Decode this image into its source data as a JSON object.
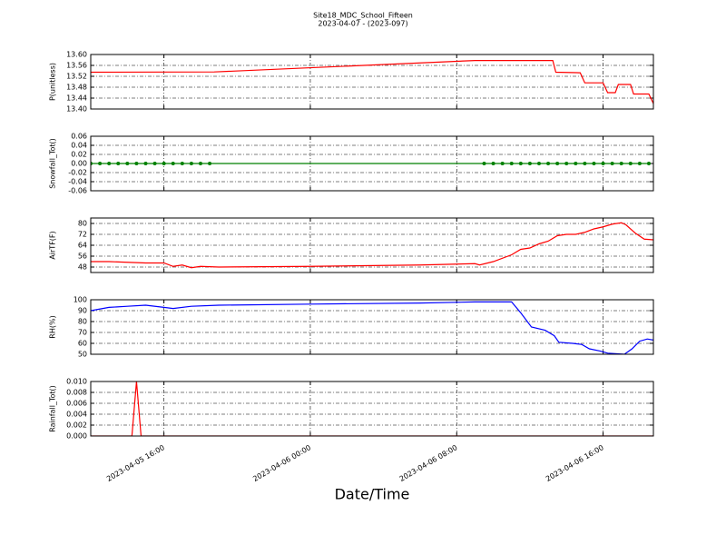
{
  "title": "Site18_MDC_School_Fifteen",
  "subtitle": "2023-04-07 - (2023-097)",
  "chart_data": [
    {
      "type": "line",
      "ylabel": "P(unitless)",
      "xlim": [
        "2023-04-05 12:00",
        "2023-04-06 18:45"
      ],
      "xticks": [
        "2023-04-05 16:00",
        "2023-04-06 00:00",
        "2023-04-06 08:00",
        "2023-04-06 16:00"
      ],
      "ylim": [
        13.4,
        13.6
      ],
      "yticks": [
        {
          "value": 13.4,
          "label": "13.40"
        },
        13.44,
        13.48,
        13.52,
        13.56,
        {
          "value": 13.6,
          "label": "13.60"
        }
      ],
      "grid": true,
      "x": [
        "2023-04-05 12:00",
        "2023-04-05 18:45",
        "2023-04-06 09:00",
        "2023-04-06 13:15",
        "2023-04-06 13:25",
        "2023-04-06 14:45",
        "2023-04-06 15:00",
        "2023-04-06 16:00",
        "2023-04-06 16:15",
        "2023-04-06 16:40",
        "2023-04-06 16:50",
        "2023-04-06 17:30",
        "2023-04-06 17:40",
        "2023-04-06 18:30",
        "2023-04-06 18:45"
      ],
      "series": [
        {
          "color": "#ff0000",
          "values": [
            13.535,
            13.536,
            13.578,
            13.578,
            13.535,
            13.533,
            13.496,
            13.496,
            13.46,
            13.46,
            13.49,
            13.49,
            13.455,
            13.455,
            13.42
          ]
        }
      ]
    },
    {
      "type": "line",
      "ylabel": "Snowfall_Tot()",
      "marker": "o",
      "xlim": [
        "2023-04-05 12:00",
        "2023-04-06 18:45"
      ],
      "xticks": [
        "2023-04-05 16:00",
        "2023-04-06 00:00",
        "2023-04-06 08:00",
        "2023-04-06 16:00"
      ],
      "ylim": [
        -0.06,
        0.06
      ],
      "yticks": [
        -0.06,
        -0.04,
        -0.02,
        {
          "value": 0,
          "label": "0.00"
        },
        0.02,
        0.04,
        0.06
      ],
      "grid": true,
      "x": [
        "2023-04-05 12:00",
        "2023-04-05 12:30",
        "2023-04-05 13:00",
        "2023-04-05 13:30",
        "2023-04-05 14:00",
        "2023-04-05 14:30",
        "2023-04-05 15:00",
        "2023-04-05 15:30",
        "2023-04-05 16:00",
        "2023-04-05 16:30",
        "2023-04-05 17:00",
        "2023-04-05 17:30",
        "2023-04-05 18:00",
        "2023-04-05 18:30",
        "2023-04-06 09:30",
        "2023-04-06 10:00",
        "2023-04-06 10:30",
        "2023-04-06 11:00",
        "2023-04-06 11:30",
        "2023-04-06 12:00",
        "2023-04-06 12:30",
        "2023-04-06 13:00",
        "2023-04-06 13:30",
        "2023-04-06 14:00",
        "2023-04-06 14:30",
        "2023-04-06 15:00",
        "2023-04-06 15:30",
        "2023-04-06 16:00",
        "2023-04-06 16:30",
        "2023-04-06 17:00",
        "2023-04-06 17:30",
        "2023-04-06 18:00",
        "2023-04-06 18:30"
      ],
      "series": [
        {
          "color": "#008000",
          "values": [
            0,
            0,
            0,
            0,
            0,
            0,
            0,
            0,
            0,
            0,
            0,
            0,
            0,
            0,
            0,
            0,
            0,
            0,
            0,
            0,
            0,
            0,
            0,
            0,
            0,
            0,
            0,
            0,
            0,
            0,
            0,
            0,
            0
          ]
        }
      ]
    },
    {
      "type": "line",
      "ylabel": "AirTF(F)",
      "xlim": [
        "2023-04-05 12:00",
        "2023-04-06 18:45"
      ],
      "xticks": [
        "2023-04-05 16:00",
        "2023-04-06 00:00",
        "2023-04-06 08:00",
        "2023-04-06 16:00"
      ],
      "ylim": [
        44,
        84
      ],
      "yticks": [
        48,
        56,
        64,
        72,
        80
      ],
      "grid": true,
      "x": [
        "2023-04-05 12:00",
        "2023-04-05 13:00",
        "2023-04-05 14:00",
        "2023-04-05 15:00",
        "2023-04-05 16:00",
        "2023-04-05 16:30",
        "2023-04-05 17:00",
        "2023-04-05 17:30",
        "2023-04-05 18:00",
        "2023-04-05 19:00",
        "2023-04-06 00:00",
        "2023-04-06 06:00",
        "2023-04-06 09:00",
        "2023-04-06 09:15",
        "2023-04-06 10:00",
        "2023-04-06 11:00",
        "2023-04-06 11:30",
        "2023-04-06 12:00",
        "2023-04-06 12:30",
        "2023-04-06 13:00",
        "2023-04-06 13:30",
        "2023-04-06 14:00",
        "2023-04-06 14:30",
        "2023-04-06 15:00",
        "2023-04-06 15:30",
        "2023-04-06 16:00",
        "2023-04-06 16:30",
        "2023-04-06 17:00",
        "2023-04-06 17:15",
        "2023-04-06 17:45",
        "2023-04-06 18:15",
        "2023-04-06 18:45"
      ],
      "series": [
        {
          "color": "#ff0000",
          "values": [
            52,
            52,
            51.5,
            51,
            51,
            48.5,
            49.5,
            47.5,
            48.5,
            48,
            48.5,
            49.5,
            50.5,
            49.5,
            52,
            57,
            61,
            62,
            65,
            67,
            71,
            72,
            72,
            73.5,
            76,
            77.5,
            79.5,
            80.5,
            79,
            73,
            68.5,
            68
          ]
        }
      ]
    },
    {
      "type": "line",
      "ylabel": "RH(%)",
      "xlim": [
        "2023-04-05 12:00",
        "2023-04-06 18:45"
      ],
      "xticks": [
        "2023-04-05 16:00",
        "2023-04-06 00:00",
        "2023-04-06 08:00",
        "2023-04-06 16:00"
      ],
      "ylim": [
        50,
        100
      ],
      "yticks": [
        50,
        60,
        70,
        80,
        90,
        100
      ],
      "grid": true,
      "x": [
        "2023-04-05 12:00",
        "2023-04-05 13:00",
        "2023-04-05 14:00",
        "2023-04-05 15:00",
        "2023-04-05 16:00",
        "2023-04-05 16:30",
        "2023-04-05 17:30",
        "2023-04-05 19:00",
        "2023-04-06 00:00",
        "2023-04-06 06:00",
        "2023-04-06 09:00",
        "2023-04-06 11:00",
        "2023-04-06 11:30",
        "2023-04-06 12:05",
        "2023-04-06 12:50",
        "2023-04-06 13:20",
        "2023-04-06 13:35",
        "2023-04-06 14:20",
        "2023-04-06 14:50",
        "2023-04-06 15:15",
        "2023-04-06 15:50",
        "2023-04-06 16:15",
        "2023-04-06 17:10",
        "2023-04-06 17:35",
        "2023-04-06 18:00",
        "2023-04-06 18:25",
        "2023-04-06 18:45"
      ],
      "series": [
        {
          "color": "#0000ff",
          "values": [
            90,
            93,
            94,
            95,
            93,
            92,
            94,
            95,
            96,
            97,
            98,
            98,
            88,
            75,
            72,
            67,
            61,
            60,
            59,
            55,
            53,
            51,
            50,
            55,
            62,
            64,
            63
          ]
        }
      ]
    },
    {
      "type": "line",
      "ylabel": "Rainfall_Tot()",
      "xlabel": "Date/Time",
      "xlim": [
        "2023-04-05 12:00",
        "2023-04-06 18:45"
      ],
      "xticks": [
        "2023-04-05 16:00",
        "2023-04-06 00:00",
        "2023-04-06 08:00",
        "2023-04-06 16:00"
      ],
      "ylim": [
        0,
        0.01
      ],
      "yticks": [
        {
          "value": 0,
          "label": "0.000"
        },
        {
          "value": 0.002,
          "label": "0.002"
        },
        {
          "value": 0.004,
          "label": "0.004"
        },
        {
          "value": 0.006,
          "label": "0.006"
        },
        {
          "value": 0.008,
          "label": "0.008"
        },
        {
          "value": 0.01,
          "label": "0.010"
        }
      ],
      "grid": true,
      "x": [
        "2023-04-05 12:00",
        "2023-04-05 14:15",
        "2023-04-05 14:30",
        "2023-04-05 14:45",
        "2023-04-06 18:45"
      ],
      "series": [
        {
          "color": "#ff0000",
          "values": [
            0,
            0,
            0.01,
            0,
            0
          ]
        }
      ]
    }
  ]
}
